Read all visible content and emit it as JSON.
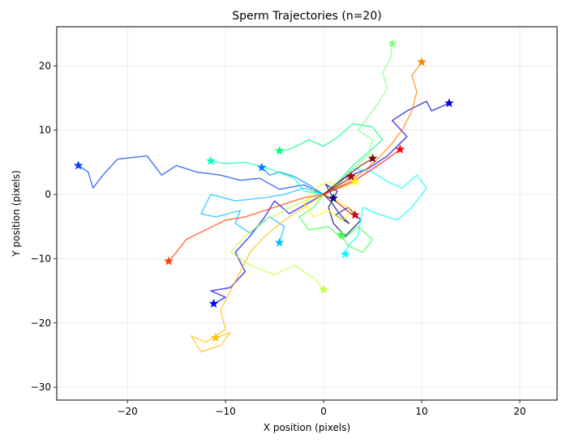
{
  "chart_data": {
    "type": "line",
    "title": "Sperm Trajectories (n=20)",
    "xlabel": "X position (pixels)",
    "ylabel": "Y position (pixels)",
    "xlim": [
      -27.2,
      23.8
    ],
    "ylim": [
      -32.0,
      26.1
    ],
    "xticks": [
      -20,
      -10,
      0,
      10,
      20
    ],
    "yticks": [
      -30,
      -20,
      -10,
      0,
      10,
      20
    ],
    "grid": true,
    "legend": "none",
    "end_marker": "star",
    "series": [
      {
        "color": "#00007f",
        "values": [
          [
            0,
            0
          ],
          [
            0.8,
            -1.2
          ],
          [
            1.6,
            -3.0
          ],
          [
            2.6,
            -4.5
          ],
          [
            1.2,
            -3.2
          ],
          [
            2.5,
            -2.0
          ],
          [
            3.8,
            -4.0
          ],
          [
            2.2,
            -6.5
          ],
          [
            1.0,
            -4.5
          ],
          [
            0.5,
            -2.0
          ],
          [
            1.4,
            0.5
          ],
          [
            0.2,
            1.6
          ],
          [
            1.0,
            -0.6
          ]
        ]
      },
      {
        "color": "#0000d6",
        "values": [
          [
            0,
            0
          ],
          [
            2.0,
            2.5
          ],
          [
            4.5,
            4.0
          ],
          [
            6.5,
            6.0
          ],
          [
            8.5,
            9.0
          ],
          [
            7.0,
            11.5
          ],
          [
            8.5,
            13.0
          ],
          [
            10.5,
            14.5
          ],
          [
            11.0,
            13.0
          ],
          [
            12.8,
            14.2
          ]
        ]
      },
      {
        "color": "#0000ff",
        "values": [
          [
            0,
            0
          ],
          [
            -1.8,
            -1.5
          ],
          [
            -3.5,
            -3.0
          ],
          [
            -5.0,
            -1.0
          ],
          [
            -6.0,
            -3.5
          ],
          [
            -7.5,
            -6.5
          ],
          [
            -9.0,
            -9.0
          ],
          [
            -8.0,
            -12.0
          ],
          [
            -9.5,
            -14.5
          ],
          [
            -11.5,
            -15.0
          ],
          [
            -10.0,
            -16.0
          ],
          [
            -11.2,
            -17.0
          ]
        ]
      },
      {
        "color": "#0040ff",
        "values": [
          [
            0,
            0
          ],
          [
            -2.0,
            1.5
          ],
          [
            -4.5,
            0.8
          ],
          [
            -6.5,
            2.5
          ],
          [
            -8.5,
            2.2
          ],
          [
            -10.5,
            3.0
          ],
          [
            -13.0,
            3.5
          ],
          [
            -15.0,
            4.5
          ],
          [
            -16.5,
            3.0
          ],
          [
            -18.0,
            6.0
          ],
          [
            -21.0,
            5.5
          ],
          [
            -22.5,
            3.0
          ],
          [
            -23.5,
            1.0
          ],
          [
            -24.0,
            3.5
          ],
          [
            -25.0,
            4.5
          ]
        ]
      },
      {
        "color": "#0080ff",
        "values": [
          [
            0,
            0
          ],
          [
            -1.5,
            1.5
          ],
          [
            -3.0,
            2.8
          ],
          [
            -4.5,
            3.5
          ],
          [
            -5.5,
            3.0
          ],
          [
            -6.3,
            4.2
          ]
        ]
      },
      {
        "color": "#00bfff",
        "values": [
          [
            0,
            0
          ],
          [
            -2.0,
            1.0
          ],
          [
            -4.0,
            0.0
          ],
          [
            -6.0,
            -0.5
          ],
          [
            -9.0,
            -1.0
          ],
          [
            -11.5,
            0.0
          ],
          [
            -12.5,
            -3.0
          ],
          [
            -11.0,
            -3.5
          ],
          [
            -8.5,
            -2.5
          ],
          [
            -9.0,
            -4.5
          ],
          [
            -7.5,
            -6.0
          ],
          [
            -5.5,
            -3.5
          ],
          [
            -4.0,
            -5.0
          ],
          [
            -4.5,
            -7.5
          ]
        ]
      },
      {
        "color": "#00ffff",
        "values": [
          [
            0,
            0
          ],
          [
            1.5,
            1.5
          ],
          [
            3.0,
            4.0
          ],
          [
            5.0,
            3.5
          ],
          [
            6.5,
            2.0
          ],
          [
            8.0,
            1.0
          ],
          [
            9.5,
            3.0
          ],
          [
            10.5,
            1.0
          ],
          [
            9.0,
            -2.0
          ],
          [
            7.5,
            -4.0
          ],
          [
            5.5,
            -3.0
          ],
          [
            4.0,
            -2.0
          ],
          [
            3.5,
            -6.5
          ],
          [
            2.5,
            -8.0
          ],
          [
            2.2,
            -9.3
          ]
        ]
      },
      {
        "color": "#00ffbf",
        "values": [
          [
            0,
            0
          ],
          [
            -2.0,
            0.5
          ],
          [
            -3.0,
            2.5
          ],
          [
            -5.5,
            4.0
          ],
          [
            -8.0,
            5.0
          ],
          [
            -10.0,
            4.8
          ],
          [
            -11.5,
            5.2
          ]
        ]
      },
      {
        "color": "#00ff80",
        "values": [
          [
            0,
            0
          ],
          [
            1.5,
            2.0
          ],
          [
            3.0,
            4.5
          ],
          [
            4.5,
            6.5
          ],
          [
            6.0,
            8.5
          ],
          [
            5.0,
            10.5
          ],
          [
            3.0,
            11.0
          ],
          [
            1.5,
            9.0
          ],
          [
            0,
            7.5
          ],
          [
            -1.5,
            8.5
          ],
          [
            -3.5,
            7.0
          ],
          [
            -4.5,
            6.8
          ]
        ]
      },
      {
        "color": "#40ff40",
        "values": [
          [
            0,
            0
          ],
          [
            -1.0,
            -2.0
          ],
          [
            -2.5,
            -3.5
          ],
          [
            -1.5,
            -5.5
          ],
          [
            0.5,
            -5.0
          ],
          [
            2.0,
            -7.0
          ],
          [
            3.5,
            -5.0
          ],
          [
            5.0,
            -7.0
          ],
          [
            4.0,
            -9.0
          ],
          [
            2.5,
            -8.0
          ],
          [
            1.8,
            -6.3
          ]
        ]
      },
      {
        "color": "#80ff80",
        "values": [
          [
            0,
            0
          ],
          [
            1.5,
            2.0
          ],
          [
            3.0,
            4.0
          ],
          [
            4.5,
            6.0
          ],
          [
            5.0,
            8.5
          ],
          [
            3.5,
            10.0
          ],
          [
            4.5,
            12.0
          ],
          [
            5.5,
            14.0
          ],
          [
            6.5,
            16.5
          ],
          [
            6.0,
            19.0
          ],
          [
            6.8,
            21.0
          ],
          [
            7.0,
            23.5
          ]
        ]
      },
      {
        "color": "#bfff40",
        "values": [
          [
            0,
            0
          ],
          [
            -2.0,
            -1.0
          ],
          [
            -4.0,
            -2.5
          ],
          [
            -6.0,
            -4.0
          ],
          [
            -8.0,
            -6.5
          ],
          [
            -9.5,
            -9.0
          ],
          [
            -7.5,
            -11.0
          ],
          [
            -5.0,
            -12.5
          ],
          [
            -3.0,
            -11.0
          ],
          [
            -1.0,
            -13.0
          ],
          [
            0,
            -14.8
          ]
        ]
      },
      {
        "color": "#ffff00",
        "values": [
          [
            0,
            0
          ],
          [
            1.5,
            -1.0
          ],
          [
            3.0,
            -2.5
          ],
          [
            2.0,
            -4.0
          ],
          [
            0.5,
            -2.5
          ],
          [
            -1.0,
            -3.5
          ],
          [
            -2.0,
            -1.5
          ],
          [
            -1.0,
            0.8
          ],
          [
            0.5,
            2.0
          ],
          [
            2.0,
            1.0
          ],
          [
            3.2,
            2.0
          ]
        ]
      },
      {
        "color": "#ffbf00",
        "values": [
          [
            0,
            0
          ],
          [
            -2.0,
            -2.0
          ],
          [
            -4.0,
            -4.0
          ],
          [
            -6.0,
            -6.5
          ],
          [
            -7.5,
            -9.0
          ],
          [
            -8.5,
            -12.0
          ],
          [
            -9.5,
            -15.0
          ],
          [
            -10.5,
            -18.0
          ],
          [
            -10.0,
            -21.0
          ],
          [
            -12.0,
            -23.0
          ],
          [
            -13.5,
            -22.0
          ],
          [
            -12.5,
            -24.5
          ],
          [
            -10.5,
            -23.5
          ],
          [
            -9.5,
            -21.5
          ],
          [
            -11.0,
            -22.3
          ]
        ]
      },
      {
        "color": "#ff8000",
        "values": [
          [
            0,
            0
          ],
          [
            2.0,
            1.5
          ],
          [
            4.0,
            3.5
          ],
          [
            5.5,
            5.5
          ],
          [
            7.0,
            8.0
          ],
          [
            8.0,
            10.0
          ],
          [
            9.0,
            13.0
          ],
          [
            9.5,
            16.0
          ],
          [
            9.0,
            18.5
          ],
          [
            10.0,
            20.6
          ]
        ]
      },
      {
        "color": "#ff4000",
        "values": [
          [
            0,
            0
          ],
          [
            -2.0,
            -0.5
          ],
          [
            -4.0,
            -1.5
          ],
          [
            -6.0,
            -2.5
          ],
          [
            -8.0,
            -3.5
          ],
          [
            -10.0,
            -4.0
          ],
          [
            -12.0,
            -5.5
          ],
          [
            -14.0,
            -7.0
          ],
          [
            -15.0,
            -9.0
          ],
          [
            -15.8,
            -10.4
          ]
        ]
      },
      {
        "color": "#ff0000",
        "values": [
          [
            0,
            0
          ],
          [
            1.5,
            1.0
          ],
          [
            3.0,
            2.0
          ],
          [
            4.5,
            3.5
          ],
          [
            6.0,
            5.0
          ],
          [
            7.8,
            7.0
          ]
        ]
      },
      {
        "color": "#d60000",
        "values": [
          [
            0,
            0
          ],
          [
            1.2,
            -1.0
          ],
          [
            2.0,
            -2.0
          ],
          [
            2.8,
            -3.0
          ],
          [
            3.2,
            -3.2
          ]
        ]
      },
      {
        "color": "#b40000",
        "values": [
          [
            0,
            0
          ],
          [
            0.8,
            0.8
          ],
          [
            1.6,
            1.5
          ],
          [
            2.3,
            2.2
          ],
          [
            2.8,
            2.8
          ]
        ]
      },
      {
        "color": "#7f0000",
        "values": [
          [
            0,
            0
          ],
          [
            1.2,
            1.5
          ],
          [
            2.5,
            3.0
          ],
          [
            3.8,
            4.5
          ],
          [
            5.0,
            5.6
          ]
        ]
      }
    ]
  }
}
